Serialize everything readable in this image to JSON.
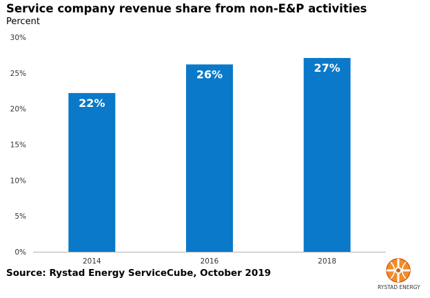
{
  "chart_data": {
    "type": "bar",
    "title": "Service company revenue share from non-E&P activities",
    "subtitle": "Percent",
    "categories": [
      "2014",
      "2016",
      "2018"
    ],
    "values": [
      22.2,
      26.2,
      27.1
    ],
    "data_labels": [
      "22%",
      "26%",
      "27%"
    ],
    "ylim": [
      0,
      30
    ],
    "yticks": [
      "0%",
      "5%",
      "10%",
      "15%",
      "20%",
      "25%",
      "30%"
    ],
    "ytick_values": [
      0,
      5,
      10,
      15,
      20,
      25,
      30
    ],
    "grid": false,
    "legend": "none",
    "bar_color": "#0a79c9"
  },
  "source": "Source: Rystad Energy ServiceCube, October 2019",
  "logo": {
    "text": "RYSTAD ENERGY",
    "icon": "rystad-globe-icon"
  }
}
